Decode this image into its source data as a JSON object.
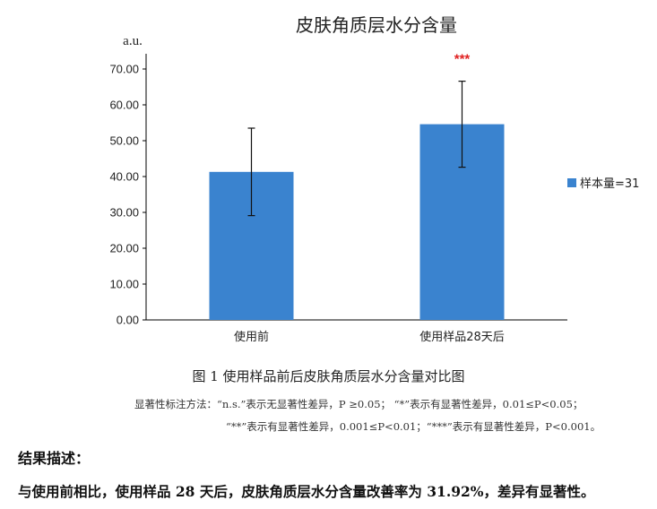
{
  "chart_data": {
    "type": "bar",
    "title": "皮肤角质层水分含量",
    "ylabel": "a.u.",
    "xlabel": "",
    "categories": [
      "使用前",
      "使用样品28天后"
    ],
    "series": [
      {
        "name": "样本量=31",
        "values": [
          41.3,
          54.6
        ],
        "error": [
          12.2,
          12.0
        ],
        "color": "#3a83cf"
      }
    ],
    "ylim": [
      0,
      70
    ],
    "yticks": [
      "0.00",
      "10.00",
      "20.00",
      "30.00",
      "40.00",
      "50.00",
      "60.00",
      "70.00"
    ],
    "significance": [
      "",
      "***"
    ],
    "legend": "right",
    "grid": false
  },
  "figure": {
    "caption": "图 1  使用样品前后皮肤角质层水分含量对比图",
    "note_line1": "显著性标注方法：“n.s.”表示无显著性差异，P ≥0.05；  “*”表示有显著性差异，0.01≤P<0.05；",
    "note_line2": "“**”表示有显著性差异，0.001≤P<0.01；“***”表示有显著性差异，P<0.001。"
  },
  "result": {
    "heading": "结果描述：",
    "text": "与使用前相比，使用样品 28 天后，皮肤角质层水分含量改善率为 31.92%，差异有显著性。"
  }
}
